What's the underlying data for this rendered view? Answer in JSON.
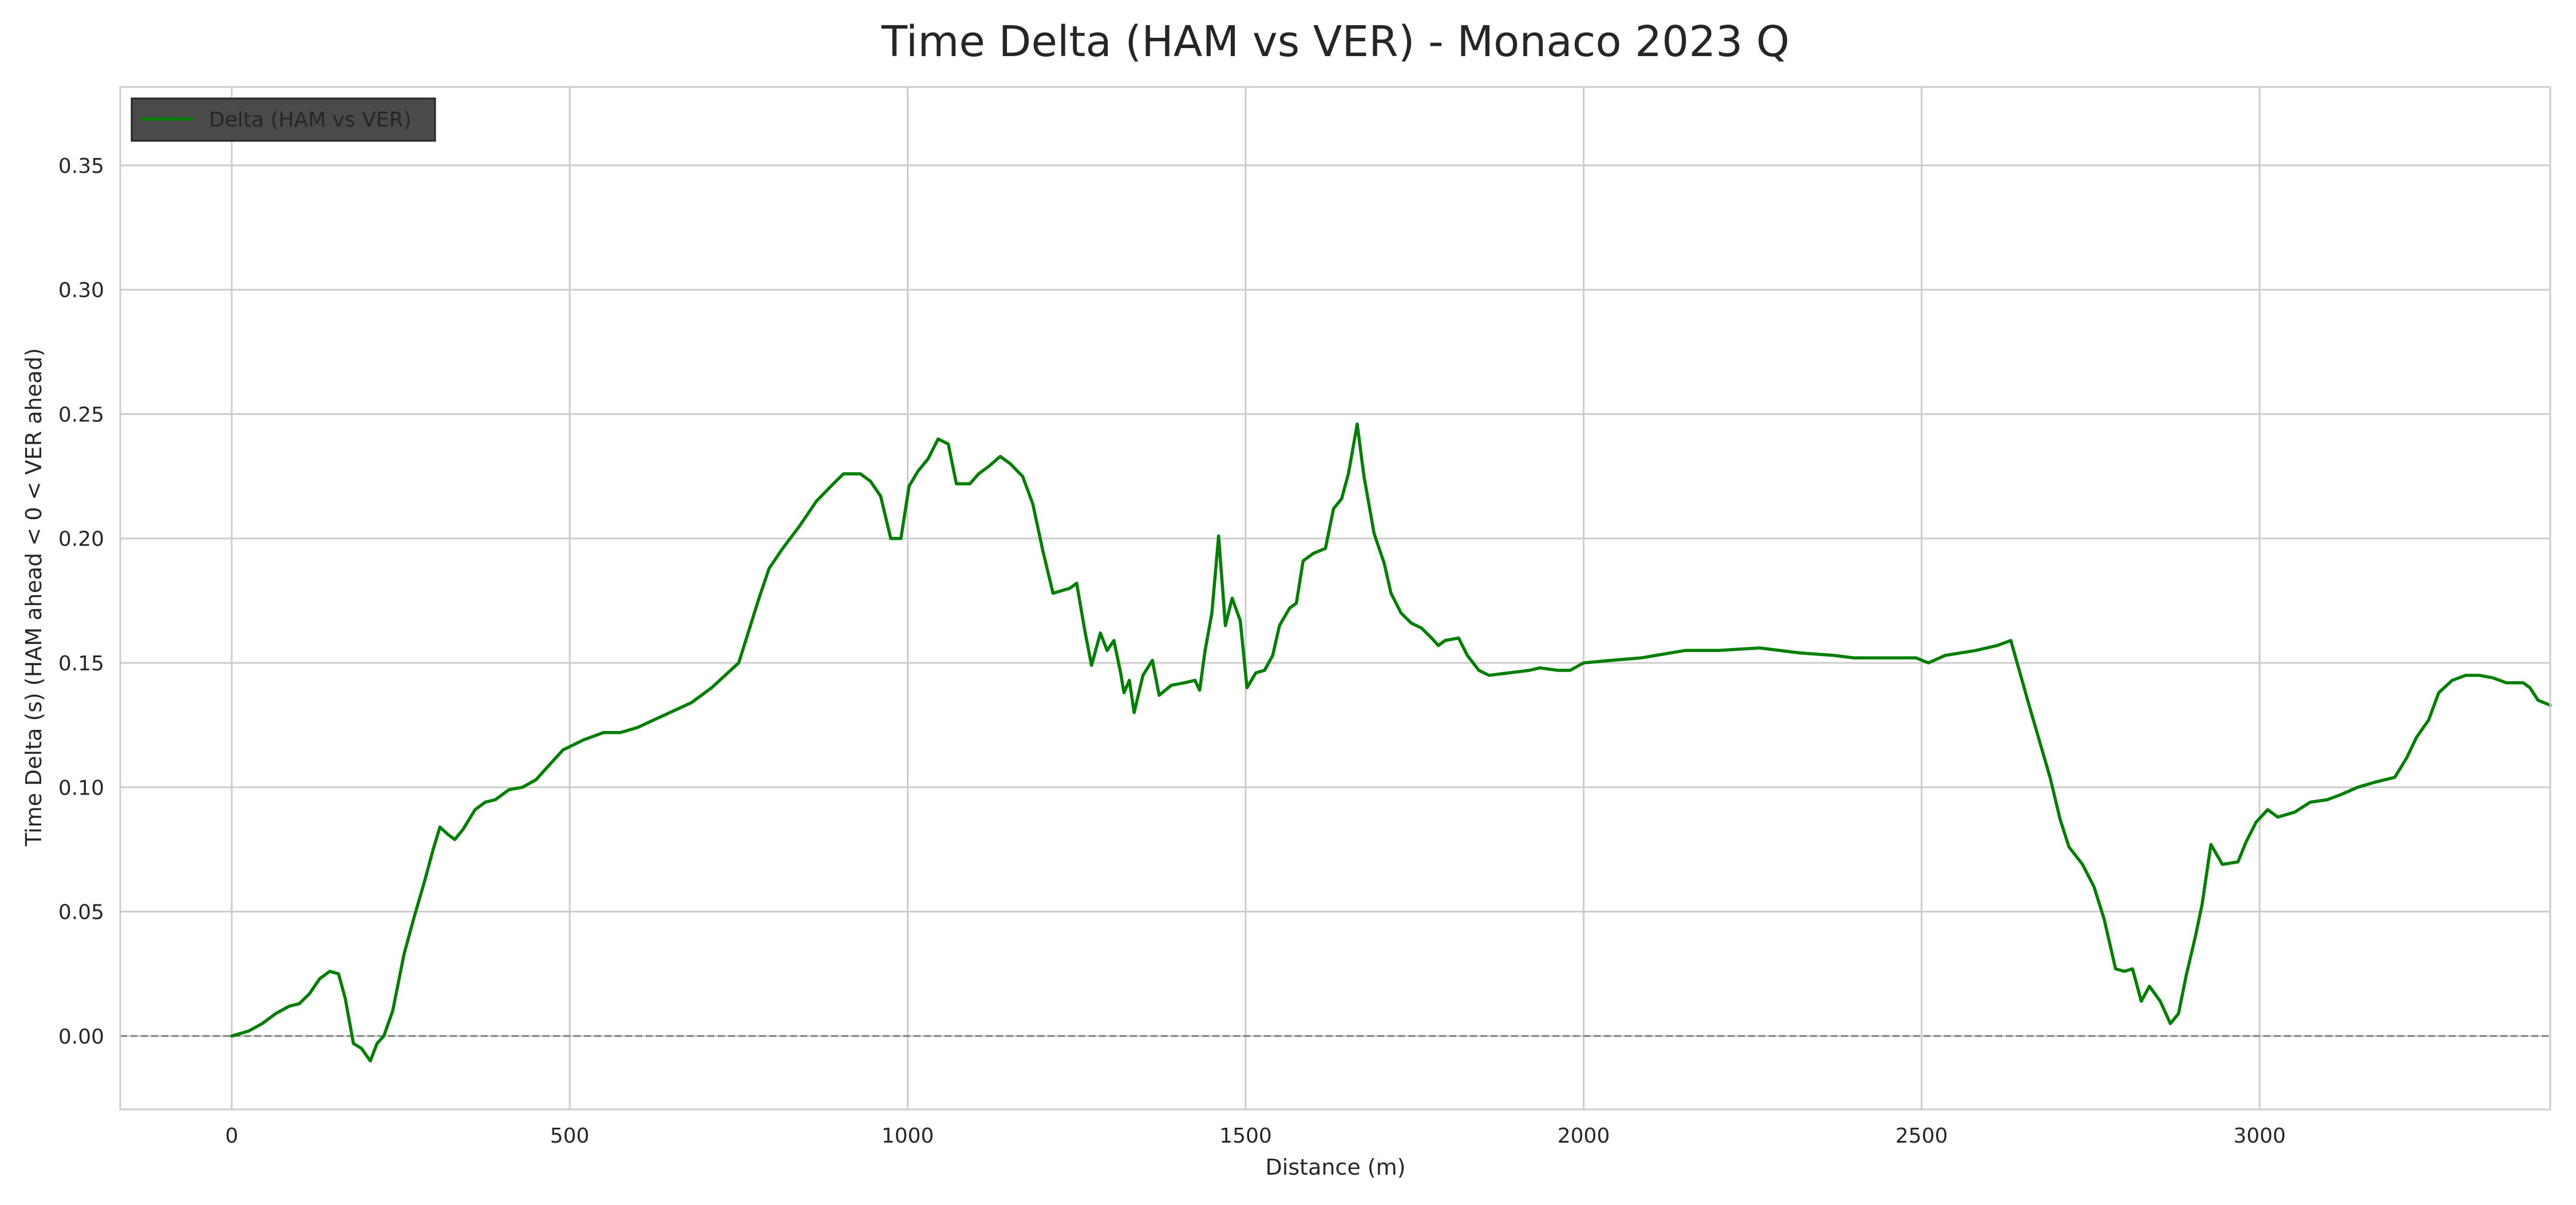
{
  "colors": {
    "line": "#007f00",
    "grid": "#cccccc",
    "frame": "#cccccc",
    "zero_line": "#808080",
    "legend_bg": "#4a4a4a",
    "legend_border": "#262626"
  },
  "chart_data": {
    "type": "line",
    "title": "Time Delta (HAM vs VER) - Monaco 2023 Q",
    "xlabel": "Distance (m)",
    "ylabel": "Time Delta (s) (HAM ahead < 0 < VER ahead)",
    "xlim": [
      -165,
      3430
    ],
    "ylim": [
      -0.0295,
      0.3815
    ],
    "x_ticks": [
      0,
      500,
      1000,
      1500,
      2000,
      2500,
      3000
    ],
    "y_ticks": [
      0.0,
      0.05,
      0.1,
      0.15,
      0.2,
      0.25,
      0.3,
      0.35
    ],
    "x_tick_labels": [
      "0",
      "500",
      "1000",
      "1500",
      "2000",
      "2500",
      "3000"
    ],
    "y_tick_labels": [
      "0.00",
      "0.05",
      "0.10",
      "0.15",
      "0.20",
      "0.25",
      "0.30",
      "0.35"
    ],
    "grid": true,
    "legend": {
      "position": "top-left",
      "entries": [
        "Delta (HAM vs VER)"
      ]
    },
    "reference_line": {
      "y": 0,
      "style": "dashed"
    },
    "series": [
      {
        "name": "Delta (HAM vs VER)",
        "points": [
          [
            0,
            0.0
          ],
          [
            25,
            0.002
          ],
          [
            45,
            0.005
          ],
          [
            65,
            0.009
          ],
          [
            85,
            0.012
          ],
          [
            100,
            0.013
          ],
          [
            115,
            0.017
          ],
          [
            130,
            0.023
          ],
          [
            145,
            0.026
          ],
          [
            158,
            0.025
          ],
          [
            168,
            0.015
          ],
          [
            180,
            -0.003
          ],
          [
            192,
            -0.005
          ],
          [
            205,
            -0.01
          ],
          [
            215,
            -0.003
          ],
          [
            225,
            0.0
          ],
          [
            238,
            0.01
          ],
          [
            255,
            0.033
          ],
          [
            270,
            0.048
          ],
          [
            285,
            0.062
          ],
          [
            298,
            0.075
          ],
          [
            308,
            0.084
          ],
          [
            320,
            0.081
          ],
          [
            330,
            0.079
          ],
          [
            342,
            0.083
          ],
          [
            360,
            0.091
          ],
          [
            375,
            0.094
          ],
          [
            390,
            0.095
          ],
          [
            410,
            0.099
          ],
          [
            430,
            0.1
          ],
          [
            450,
            0.103
          ],
          [
            470,
            0.109
          ],
          [
            490,
            0.115
          ],
          [
            520,
            0.119
          ],
          [
            550,
            0.122
          ],
          [
            575,
            0.122
          ],
          [
            600,
            0.124
          ],
          [
            640,
            0.129
          ],
          [
            680,
            0.134
          ],
          [
            710,
            0.14
          ],
          [
            730,
            0.145
          ],
          [
            750,
            0.15
          ],
          [
            765,
            0.163
          ],
          [
            780,
            0.176
          ],
          [
            795,
            0.188
          ],
          [
            815,
            0.196
          ],
          [
            840,
            0.205
          ],
          [
            865,
            0.215
          ],
          [
            890,
            0.222
          ],
          [
            905,
            0.226
          ],
          [
            930,
            0.226
          ],
          [
            945,
            0.223
          ],
          [
            960,
            0.217
          ],
          [
            975,
            0.2
          ],
          [
            990,
            0.2
          ],
          [
            1002,
            0.221
          ],
          [
            1015,
            0.227
          ],
          [
            1030,
            0.232
          ],
          [
            1045,
            0.24
          ],
          [
            1060,
            0.238
          ],
          [
            1072,
            0.222
          ],
          [
            1092,
            0.222
          ],
          [
            1105,
            0.226
          ],
          [
            1120,
            0.229
          ],
          [
            1137,
            0.233
          ],
          [
            1152,
            0.23
          ],
          [
            1170,
            0.225
          ],
          [
            1185,
            0.214
          ],
          [
            1200,
            0.195
          ],
          [
            1215,
            0.178
          ],
          [
            1240,
            0.18
          ],
          [
            1250,
            0.182
          ],
          [
            1262,
            0.163
          ],
          [
            1272,
            0.149
          ],
          [
            1285,
            0.162
          ],
          [
            1295,
            0.155
          ],
          [
            1305,
            0.159
          ],
          [
            1315,
            0.146
          ],
          [
            1320,
            0.138
          ],
          [
            1328,
            0.143
          ],
          [
            1335,
            0.13
          ],
          [
            1348,
            0.145
          ],
          [
            1362,
            0.151
          ],
          [
            1372,
            0.137
          ],
          [
            1390,
            0.141
          ],
          [
            1410,
            0.142
          ],
          [
            1425,
            0.143
          ],
          [
            1432,
            0.139
          ],
          [
            1440,
            0.155
          ],
          [
            1450,
            0.17
          ],
          [
            1460,
            0.201
          ],
          [
            1470,
            0.165
          ],
          [
            1480,
            0.176
          ],
          [
            1492,
            0.167
          ],
          [
            1502,
            0.14
          ],
          [
            1515,
            0.146
          ],
          [
            1528,
            0.147
          ],
          [
            1540,
            0.153
          ],
          [
            1550,
            0.165
          ],
          [
            1565,
            0.172
          ],
          [
            1575,
            0.174
          ],
          [
            1585,
            0.191
          ],
          [
            1600,
            0.194
          ],
          [
            1618,
            0.196
          ],
          [
            1630,
            0.212
          ],
          [
            1642,
            0.216
          ],
          [
            1652,
            0.226
          ],
          [
            1665,
            0.246
          ],
          [
            1675,
            0.225
          ],
          [
            1690,
            0.202
          ],
          [
            1705,
            0.19
          ],
          [
            1715,
            0.178
          ],
          [
            1730,
            0.17
          ],
          [
            1745,
            0.166
          ],
          [
            1760,
            0.164
          ],
          [
            1775,
            0.16
          ],
          [
            1785,
            0.157
          ],
          [
            1795,
            0.159
          ],
          [
            1815,
            0.16
          ],
          [
            1828,
            0.153
          ],
          [
            1845,
            0.147
          ],
          [
            1860,
            0.145
          ],
          [
            1890,
            0.146
          ],
          [
            1920,
            0.147
          ],
          [
            1935,
            0.148
          ],
          [
            1962,
            0.147
          ],
          [
            1980,
            0.147
          ],
          [
            2000,
            0.15
          ],
          [
            2040,
            0.151
          ],
          [
            2085,
            0.152
          ],
          [
            2150,
            0.155
          ],
          [
            2200,
            0.155
          ],
          [
            2260,
            0.156
          ],
          [
            2320,
            0.154
          ],
          [
            2370,
            0.153
          ],
          [
            2400,
            0.152
          ],
          [
            2430,
            0.152
          ],
          [
            2460,
            0.152
          ],
          [
            2492,
            0.152
          ],
          [
            2510,
            0.15
          ],
          [
            2535,
            0.153
          ],
          [
            2580,
            0.155
          ],
          [
            2612,
            0.157
          ],
          [
            2632,
            0.159
          ],
          [
            2660,
            0.132
          ],
          [
            2690,
            0.104
          ],
          [
            2705,
            0.087
          ],
          [
            2718,
            0.076
          ],
          [
            2738,
            0.069
          ],
          [
            2755,
            0.06
          ],
          [
            2770,
            0.047
          ],
          [
            2787,
            0.027
          ],
          [
            2800,
            0.026
          ],
          [
            2812,
            0.027
          ],
          [
            2825,
            0.014
          ],
          [
            2837,
            0.02
          ],
          [
            2853,
            0.014
          ],
          [
            2868,
            0.005
          ],
          [
            2880,
            0.009
          ],
          [
            2892,
            0.025
          ],
          [
            2905,
            0.04
          ],
          [
            2915,
            0.053
          ],
          [
            2928,
            0.077
          ],
          [
            2945,
            0.069
          ],
          [
            2968,
            0.07
          ],
          [
            2980,
            0.078
          ],
          [
            2995,
            0.086
          ],
          [
            3012,
            0.091
          ],
          [
            3027,
            0.088
          ],
          [
            3052,
            0.09
          ],
          [
            3075,
            0.094
          ],
          [
            3100,
            0.095
          ],
          [
            3120,
            0.097
          ],
          [
            3145,
            0.1
          ],
          [
            3170,
            0.102
          ],
          [
            3200,
            0.104
          ],
          [
            3218,
            0.112
          ],
          [
            3232,
            0.12
          ],
          [
            3250,
            0.127
          ],
          [
            3265,
            0.138
          ],
          [
            3285,
            0.143
          ],
          [
            3305,
            0.145
          ],
          [
            3325,
            0.145
          ],
          [
            3345,
            0.144
          ],
          [
            3365,
            0.142
          ],
          [
            3380,
            0.142
          ],
          [
            3390,
            0.142
          ],
          [
            3400,
            0.14
          ],
          [
            3412,
            0.135
          ],
          [
            3430,
            0.133
          ]
        ]
      }
    ]
  }
}
